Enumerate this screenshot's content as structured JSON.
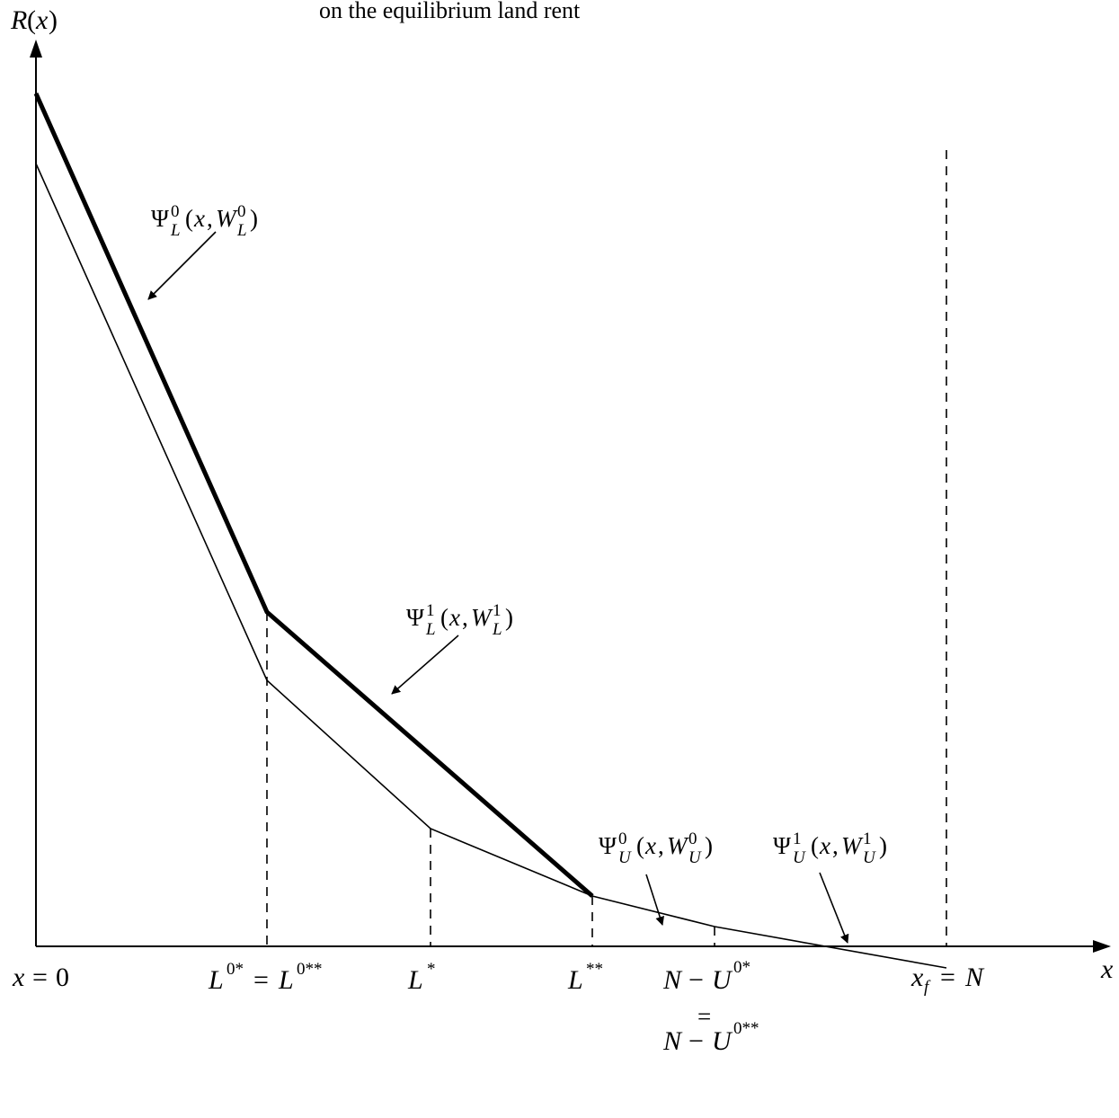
{
  "title": "on the equilibrium land rent",
  "axes": {
    "y_label": "R(x)",
    "x_label": "x"
  },
  "x_ticks": {
    "origin": "x = 0",
    "l0": "L0* = L0**",
    "lstar": "L*",
    "lstarstar": "L**",
    "nu_top": "N − U0*",
    "nu_eq": "=",
    "nu_bottom": "N − U0**",
    "xf": "xf = N"
  },
  "curve_labels": {
    "psi_l0": "ΨL0(x,WL0)",
    "psi_l1": "ΨL1(x,WL1)",
    "psi_u0": "ΨU0(x,WU0)",
    "psi_u1": "ΨU1(x,WU1)"
  }
}
